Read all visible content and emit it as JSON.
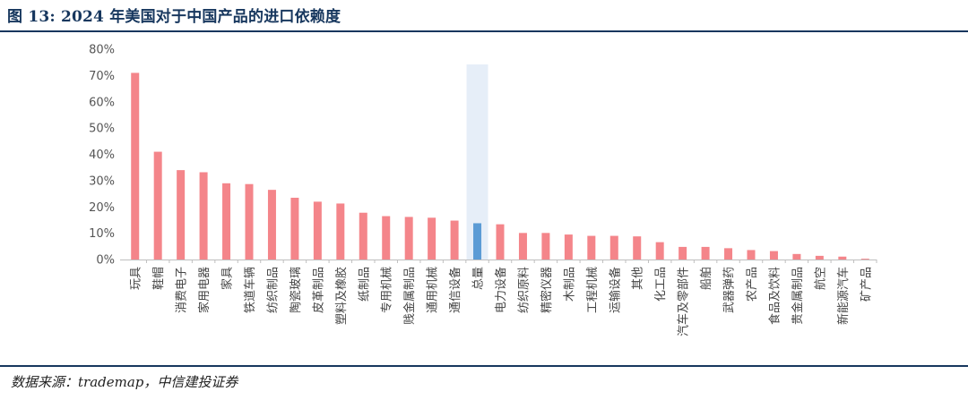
{
  "header": {
    "title": "图 13: 2024 年美国对于中国产品的进口依赖度"
  },
  "footer": {
    "source": "数据来源：trademap，中信建投证券"
  },
  "colors": {
    "bar": "#f4858a",
    "highlight_bar": "#5b9bd5",
    "highlight_band": "#e6eef8",
    "rule": "#17375e"
  },
  "chart_data": {
    "type": "bar",
    "categories": [
      "玩具",
      "鞋帽",
      "消费电子",
      "家用电器",
      "家具",
      "铁道车辆",
      "纺织制品",
      "陶瓷玻璃",
      "皮革制品",
      "塑料及橡胶",
      "纸制品",
      "专用机械",
      "贱金属制品",
      "通用机械",
      "通信设备",
      "总量",
      "电力设备",
      "纺织原料",
      "精密仪器",
      "木制品",
      "工程机械",
      "运输设备",
      "其他",
      "化工品",
      "汽车及零部件",
      "船舶",
      "武器弹药",
      "农产品",
      "食品及饮料",
      "贵金属制品",
      "航空",
      "新能源汽车",
      "矿产品"
    ],
    "values": [
      71,
      41,
      34,
      33.2,
      29,
      28.7,
      26.5,
      23.5,
      22,
      21.3,
      17.8,
      16.5,
      16.2,
      15.9,
      14.8,
      13.8,
      13.4,
      10.1,
      10.1,
      9.5,
      9,
      9,
      8.8,
      6.6,
      4.8,
      4.8,
      4.3,
      3.6,
      3.2,
      2.1,
      1.4,
      1.1,
      0.3
    ],
    "highlight": "总量",
    "yticks": [
      "0%",
      "10%",
      "20%",
      "30%",
      "40%",
      "50%",
      "60%",
      "70%",
      "80%"
    ],
    "ylim": [
      0,
      80
    ],
    "grid": false,
    "legend": "none"
  }
}
